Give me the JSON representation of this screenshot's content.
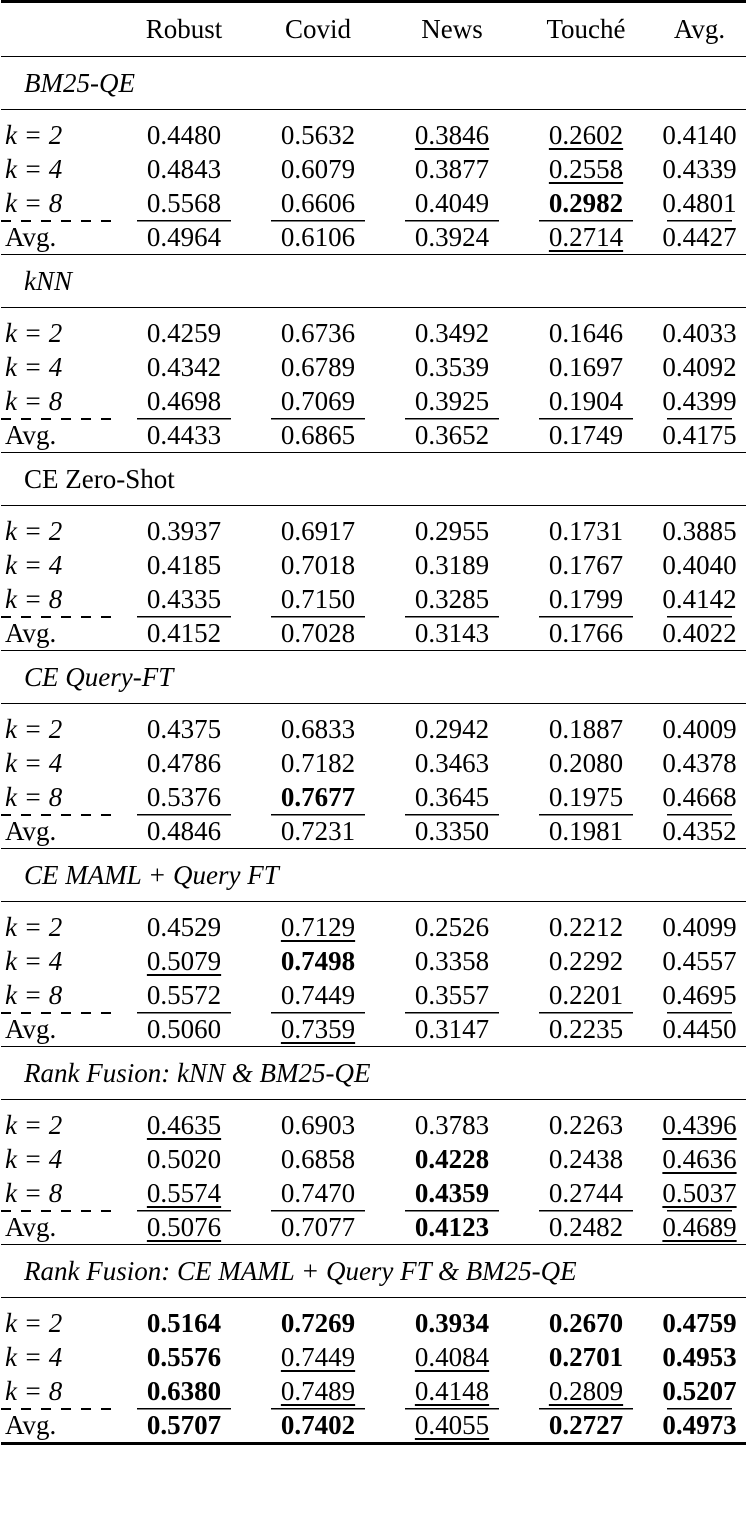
{
  "header": [
    "",
    "Robust",
    "Covid",
    "News",
    "Touché",
    "Avg."
  ],
  "sections": [
    {
      "title": "BM25-QE",
      "italic": true,
      "rows": [
        {
          "label": "k = 2",
          "cells": [
            {
              "v": "0.4480"
            },
            {
              "v": "0.5632"
            },
            {
              "v": "0.3846",
              "u": true
            },
            {
              "v": "0.2602",
              "u": true
            },
            {
              "v": "0.4140"
            }
          ]
        },
        {
          "label": "k = 4",
          "cells": [
            {
              "v": "0.4843"
            },
            {
              "v": "0.6079"
            },
            {
              "v": "0.3877"
            },
            {
              "v": "0.2558",
              "u": true
            },
            {
              "v": "0.4339"
            }
          ]
        },
        {
          "label": "k = 8",
          "cells": [
            {
              "v": "0.5568"
            },
            {
              "v": "0.6606"
            },
            {
              "v": "0.4049"
            },
            {
              "v": "0.2982",
              "b": true
            },
            {
              "v": "0.4801"
            }
          ]
        },
        {
          "label": "Avg.",
          "avg": true,
          "cells": [
            {
              "v": "0.4964"
            },
            {
              "v": "0.6106"
            },
            {
              "v": "0.3924"
            },
            {
              "v": "0.2714",
              "u": true
            },
            {
              "v": "0.4427"
            }
          ]
        }
      ]
    },
    {
      "title": "kNN",
      "italic": true,
      "rows": [
        {
          "label": "k = 2",
          "cells": [
            {
              "v": "0.4259"
            },
            {
              "v": "0.6736"
            },
            {
              "v": "0.3492"
            },
            {
              "v": "0.1646"
            },
            {
              "v": "0.4033"
            }
          ]
        },
        {
          "label": "k = 4",
          "cells": [
            {
              "v": "0.4342"
            },
            {
              "v": "0.6789"
            },
            {
              "v": "0.3539"
            },
            {
              "v": "0.1697"
            },
            {
              "v": "0.4092"
            }
          ]
        },
        {
          "label": "k = 8",
          "cells": [
            {
              "v": "0.4698"
            },
            {
              "v": "0.7069"
            },
            {
              "v": "0.3925"
            },
            {
              "v": "0.1904"
            },
            {
              "v": "0.4399"
            }
          ]
        },
        {
          "label": "Avg.",
          "avg": true,
          "cells": [
            {
              "v": "0.4433"
            },
            {
              "v": "0.6865"
            },
            {
              "v": "0.3652"
            },
            {
              "v": "0.1749"
            },
            {
              "v": "0.4175"
            }
          ]
        }
      ]
    },
    {
      "title": "CE Zero-Shot",
      "italic": false,
      "rows": [
        {
          "label": "k = 2",
          "cells": [
            {
              "v": "0.3937"
            },
            {
              "v": "0.6917"
            },
            {
              "v": "0.2955"
            },
            {
              "v": "0.1731"
            },
            {
              "v": "0.3885"
            }
          ]
        },
        {
          "label": "k = 4",
          "cells": [
            {
              "v": "0.4185"
            },
            {
              "v": "0.7018"
            },
            {
              "v": "0.3189"
            },
            {
              "v": "0.1767"
            },
            {
              "v": "0.4040"
            }
          ]
        },
        {
          "label": "k = 8",
          "cells": [
            {
              "v": "0.4335"
            },
            {
              "v": "0.7150"
            },
            {
              "v": "0.3285"
            },
            {
              "v": "0.1799"
            },
            {
              "v": "0.4142"
            }
          ]
        },
        {
          "label": "Avg.",
          "avg": true,
          "cells": [
            {
              "v": "0.4152"
            },
            {
              "v": "0.7028"
            },
            {
              "v": "0.3143"
            },
            {
              "v": "0.1766"
            },
            {
              "v": "0.4022"
            }
          ]
        }
      ]
    },
    {
      "title": "CE Query-FT",
      "italic": true,
      "rows": [
        {
          "label": "k = 2",
          "cells": [
            {
              "v": "0.4375"
            },
            {
              "v": "0.6833"
            },
            {
              "v": "0.2942"
            },
            {
              "v": "0.1887"
            },
            {
              "v": "0.4009"
            }
          ]
        },
        {
          "label": "k = 4",
          "cells": [
            {
              "v": "0.4786"
            },
            {
              "v": "0.7182"
            },
            {
              "v": "0.3463"
            },
            {
              "v": "0.2080"
            },
            {
              "v": "0.4378"
            }
          ]
        },
        {
          "label": "k = 8",
          "cells": [
            {
              "v": "0.5376"
            },
            {
              "v": "0.7677",
              "b": true
            },
            {
              "v": "0.3645"
            },
            {
              "v": "0.1975"
            },
            {
              "v": "0.4668"
            }
          ]
        },
        {
          "label": "Avg.",
          "avg": true,
          "cells": [
            {
              "v": "0.4846"
            },
            {
              "v": "0.7231"
            },
            {
              "v": "0.3350"
            },
            {
              "v": "0.1981"
            },
            {
              "v": "0.4352"
            }
          ]
        }
      ]
    },
    {
      "title": "CE MAML + Query FT",
      "italic": true,
      "rows": [
        {
          "label": "k = 2",
          "cells": [
            {
              "v": "0.4529"
            },
            {
              "v": "0.7129",
              "u": true
            },
            {
              "v": "0.2526"
            },
            {
              "v": "0.2212"
            },
            {
              "v": "0.4099"
            }
          ]
        },
        {
          "label": "k = 4",
          "cells": [
            {
              "v": "0.5079",
              "u": true
            },
            {
              "v": "0.7498",
              "b": true
            },
            {
              "v": "0.3358"
            },
            {
              "v": "0.2292"
            },
            {
              "v": "0.4557"
            }
          ]
        },
        {
          "label": "k = 8",
          "cells": [
            {
              "v": "0.5572"
            },
            {
              "v": "0.7449"
            },
            {
              "v": "0.3557"
            },
            {
              "v": "0.2201"
            },
            {
              "v": "0.4695"
            }
          ]
        },
        {
          "label": "Avg.",
          "avg": true,
          "cells": [
            {
              "v": "0.5060"
            },
            {
              "v": "0.7359",
              "u": true
            },
            {
              "v": "0.3147"
            },
            {
              "v": "0.2235"
            },
            {
              "v": "0.4450"
            }
          ]
        }
      ]
    },
    {
      "title": "Rank Fusion: kNN & BM25-QE",
      "italic": true,
      "rows": [
        {
          "label": "k = 2",
          "cells": [
            {
              "v": "0.4635",
              "u": true
            },
            {
              "v": "0.6903"
            },
            {
              "v": "0.3783"
            },
            {
              "v": "0.2263"
            },
            {
              "v": "0.4396",
              "u": true
            }
          ]
        },
        {
          "label": "k = 4",
          "cells": [
            {
              "v": "0.5020"
            },
            {
              "v": "0.6858"
            },
            {
              "v": "0.4228",
              "b": true
            },
            {
              "v": "0.2438"
            },
            {
              "v": "0.4636",
              "u": true
            }
          ]
        },
        {
          "label": "k = 8",
          "cells": [
            {
              "v": "0.5574",
              "u": true
            },
            {
              "v": "0.7470"
            },
            {
              "v": "0.4359",
              "b": true
            },
            {
              "v": "0.2744"
            },
            {
              "v": "0.5037",
              "u": true
            }
          ]
        },
        {
          "label": "Avg.",
          "avg": true,
          "cells": [
            {
              "v": "0.5076",
              "u": true
            },
            {
              "v": "0.7077"
            },
            {
              "v": "0.4123",
              "b": true
            },
            {
              "v": "0.2482"
            },
            {
              "v": "0.4689",
              "u": true
            }
          ]
        }
      ]
    },
    {
      "title": "Rank Fusion: CE MAML + Query FT & BM25-QE",
      "italic": true,
      "rows": [
        {
          "label": "k = 2",
          "cells": [
            {
              "v": "0.5164",
              "b": true
            },
            {
              "v": "0.7269",
              "b": true
            },
            {
              "v": "0.3934",
              "b": true
            },
            {
              "v": "0.2670",
              "b": true
            },
            {
              "v": "0.4759",
              "b": true
            }
          ]
        },
        {
          "label": "k = 4",
          "cells": [
            {
              "v": "0.5576",
              "b": true
            },
            {
              "v": "0.7449",
              "u": true
            },
            {
              "v": "0.4084",
              "u": true
            },
            {
              "v": "0.2701",
              "b": true
            },
            {
              "v": "0.4953",
              "b": true
            }
          ]
        },
        {
          "label": "k = 8",
          "cells": [
            {
              "v": "0.6380",
              "b": true
            },
            {
              "v": "0.7489",
              "u": true
            },
            {
              "v": "0.4148",
              "u": true
            },
            {
              "v": "0.2809",
              "u": true
            },
            {
              "v": "0.5207",
              "b": true
            }
          ]
        },
        {
          "label": "Avg.",
          "avg": true,
          "cells": [
            {
              "v": "0.5707",
              "b": true
            },
            {
              "v": "0.7402",
              "b": true
            },
            {
              "v": "0.4055",
              "u": true
            },
            {
              "v": "0.2727",
              "b": true
            },
            {
              "v": "0.4973",
              "b": true
            }
          ]
        }
      ]
    }
  ]
}
